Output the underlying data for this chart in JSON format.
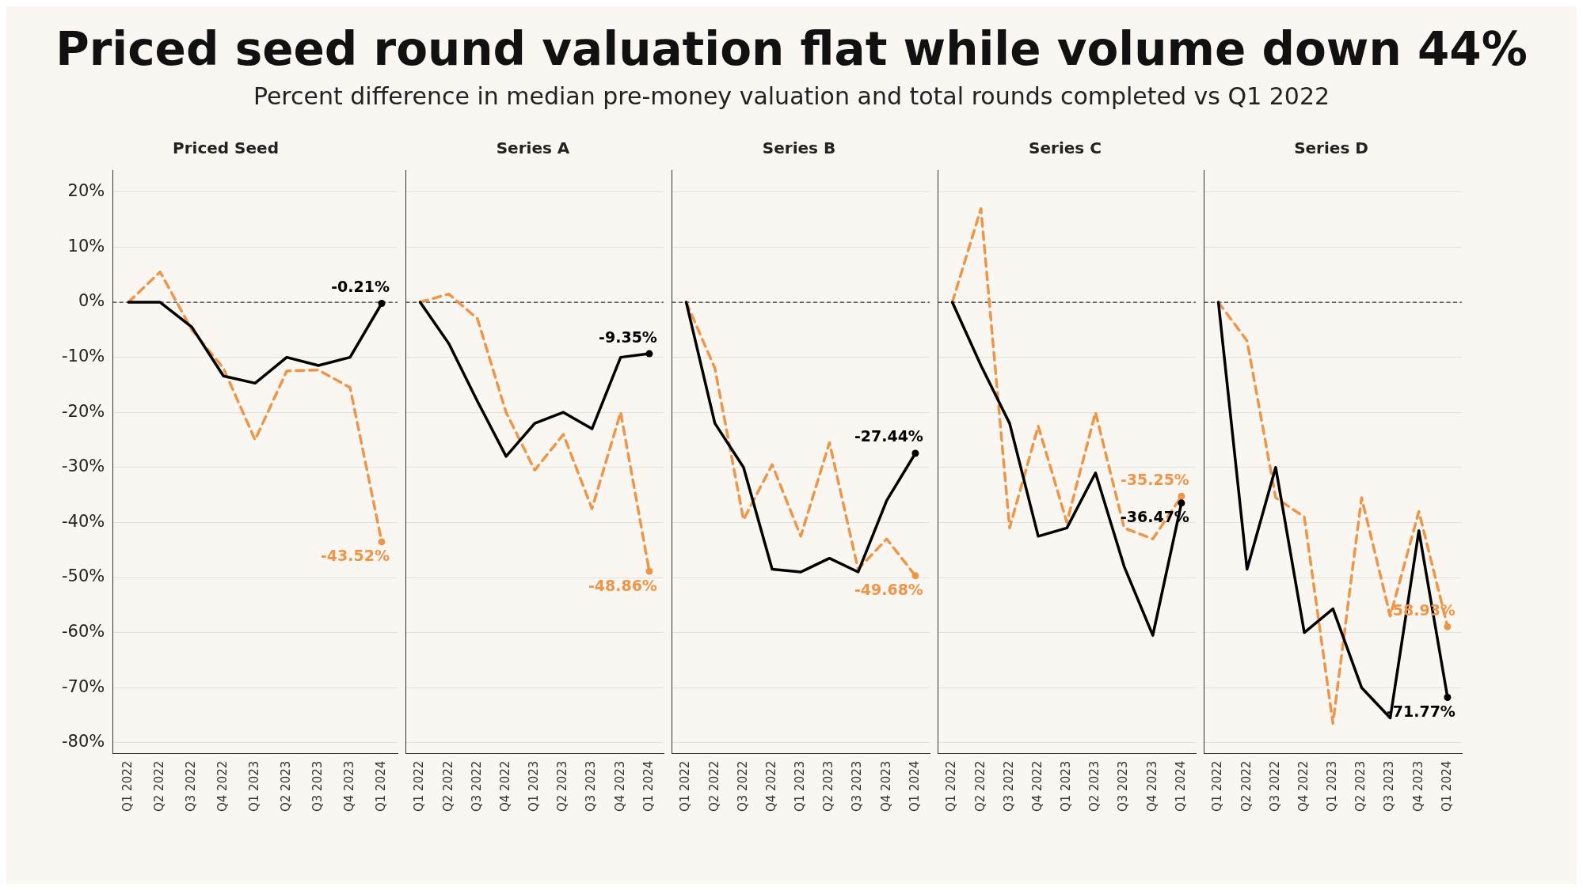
{
  "chart_data": [
    {
      "type": "other",
      "title": "Priced seed round valuation flat while volume down 44%",
      "subtitle": "Percent difference in median pre-money valuation and total rounds completed vs Q1 2022"
    },
    {
      "type": "line",
      "title": "Priced Seed",
      "categories": [
        "Q1 2022",
        "Q2 2022",
        "Q3 2022",
        "Q4 2022",
        "Q1 2023",
        "Q2 2023",
        "Q3 2023",
        "Q4 2023",
        "Q1 2024"
      ],
      "ylim": [
        -82,
        24
      ],
      "yticks": [
        {
          "value": -80,
          "label": "-80%"
        },
        {
          "value": -70,
          "label": "-70%"
        },
        {
          "value": -60,
          "label": "-60%"
        },
        {
          "value": -50,
          "label": "-50%"
        },
        {
          "value": -40,
          "label": "-40%"
        },
        {
          "value": -30,
          "label": "-30%"
        },
        {
          "value": -20,
          "label": "-20%"
        },
        {
          "value": -10,
          "label": "-10%"
        },
        {
          "value": 0,
          "label": "0%"
        },
        {
          "value": 10,
          "label": "10%"
        },
        {
          "value": 20,
          "label": "20%"
        }
      ],
      "grid": "y",
      "legend": false,
      "ref_lines": [
        {
          "axis": "y",
          "value": 0,
          "line_style": "dashed",
          "color": "#333333"
        }
      ],
      "series": [
        {
          "color": "#000000",
          "line_style": "solid",
          "values": [
            0,
            0,
            -4.5,
            -13.4,
            -14.7,
            -10,
            -11.5,
            -10,
            -0.21
          ],
          "value_labels": [
            null,
            null,
            null,
            null,
            null,
            null,
            null,
            null,
            "-0.21%"
          ]
        },
        {
          "color": "#ef9548",
          "line_style": "dashed",
          "values": [
            0,
            5.5,
            -5,
            -12,
            -25,
            -12.5,
            -12.3,
            -15.5,
            -43.52
          ],
          "value_labels": [
            null,
            null,
            null,
            null,
            null,
            null,
            null,
            null,
            "-43.52%"
          ]
        }
      ]
    },
    {
      "type": "line",
      "title": "Series A",
      "categories": [
        "Q1 2022",
        "Q2 2022",
        "Q3 2022",
        "Q4 2022",
        "Q1 2023",
        "Q2 2023",
        "Q3 2023",
        "Q4 2023",
        "Q1 2024"
      ],
      "ylim": [
        -82,
        24
      ],
      "yticks": [
        {
          "value": -80,
          "label": null
        },
        {
          "value": -70,
          "label": null
        },
        {
          "value": -60,
          "label": null
        },
        {
          "value": -50,
          "label": null
        },
        {
          "value": -40,
          "label": null
        },
        {
          "value": -30,
          "label": null
        },
        {
          "value": -20,
          "label": null
        },
        {
          "value": -10,
          "label": null
        },
        {
          "value": 0,
          "label": null
        },
        {
          "value": 10,
          "label": null
        },
        {
          "value": 20,
          "label": null
        }
      ],
      "tick_labels": "x",
      "grid": "y",
      "legend": false,
      "ref_lines": [
        {
          "axis": "y",
          "value": 0,
          "line_style": "dashed",
          "color": "#333333"
        }
      ],
      "series": [
        {
          "color": "#000000",
          "line_style": "solid",
          "values": [
            0,
            -7.5,
            -18,
            -28,
            -22,
            -20,
            -23,
            -10,
            -9.35
          ],
          "value_labels": [
            null,
            null,
            null,
            null,
            null,
            null,
            null,
            null,
            "-9.35%"
          ]
        },
        {
          "color": "#ef9548",
          "line_style": "dashed",
          "values": [
            0,
            1.5,
            -3,
            -20,
            -30.5,
            -24,
            -37.5,
            -20,
            -48.86
          ],
          "value_labels": [
            null,
            null,
            null,
            null,
            null,
            null,
            null,
            null,
            "-48.86%"
          ]
        }
      ]
    },
    {
      "type": "line",
      "title": "Series B",
      "categories": [
        "Q1 2022",
        "Q2 2022",
        "Q3 2022",
        "Q4 2022",
        "Q1 2023",
        "Q2 2023",
        "Q3 2023",
        "Q4 2023",
        "Q1 2024"
      ],
      "ylim": [
        -82,
        24
      ],
      "yticks": [
        {
          "value": -80,
          "label": null
        },
        {
          "value": -70,
          "label": null
        },
        {
          "value": -60,
          "label": null
        },
        {
          "value": -50,
          "label": null
        },
        {
          "value": -40,
          "label": null
        },
        {
          "value": -30,
          "label": null
        },
        {
          "value": -20,
          "label": null
        },
        {
          "value": -10,
          "label": null
        },
        {
          "value": 0,
          "label": null
        },
        {
          "value": 10,
          "label": null
        },
        {
          "value": 20,
          "label": null
        }
      ],
      "tick_labels": "x",
      "grid": "y",
      "legend": false,
      "ref_lines": [
        {
          "axis": "y",
          "value": 0,
          "line_style": "dashed",
          "color": "#333333"
        }
      ],
      "series": [
        {
          "color": "#000000",
          "line_style": "solid",
          "values": [
            0,
            -22,
            -30,
            -48.5,
            -49,
            -46.5,
            -49,
            -36,
            -27.44
          ],
          "value_labels": [
            null,
            null,
            null,
            null,
            null,
            null,
            null,
            null,
            "-27.44%"
          ]
        },
        {
          "color": "#ef9548",
          "line_style": "dashed",
          "values": [
            0,
            -12,
            -39.5,
            -29.5,
            -42.5,
            -25.5,
            -48.5,
            -43,
            -49.68
          ],
          "value_labels": [
            null,
            null,
            null,
            null,
            null,
            null,
            null,
            null,
            "-49.68%"
          ]
        }
      ]
    },
    {
      "type": "line",
      "title": "Series C",
      "categories": [
        "Q1 2022",
        "Q2 2022",
        "Q3 2022",
        "Q4 2022",
        "Q1 2023",
        "Q2 2023",
        "Q3 2023",
        "Q4 2023",
        "Q1 2024"
      ],
      "ylim": [
        -82,
        24
      ],
      "yticks": [
        {
          "value": -80,
          "label": null
        },
        {
          "value": -70,
          "label": null
        },
        {
          "value": -60,
          "label": null
        },
        {
          "value": -50,
          "label": null
        },
        {
          "value": -40,
          "label": null
        },
        {
          "value": -30,
          "label": null
        },
        {
          "value": -20,
          "label": null
        },
        {
          "value": -10,
          "label": null
        },
        {
          "value": 0,
          "label": null
        },
        {
          "value": 10,
          "label": null
        },
        {
          "value": 20,
          "label": null
        }
      ],
      "tick_labels": "x",
      "grid": "y",
      "legend": false,
      "ref_lines": [
        {
          "axis": "y",
          "value": 0,
          "line_style": "dashed",
          "color": "#333333"
        }
      ],
      "series": [
        {
          "color": "#000000",
          "line_style": "solid",
          "values": [
            0,
            -11.5,
            -22,
            -42.5,
            -41,
            -31,
            -48,
            -60.5,
            -36.47
          ],
          "value_labels": [
            null,
            null,
            null,
            null,
            null,
            null,
            null,
            null,
            "-36.47%"
          ]
        },
        {
          "color": "#ef9548",
          "line_style": "dashed",
          "values": [
            0,
            17,
            -41,
            -22.5,
            -40,
            -20,
            -41,
            -43,
            -35.25
          ],
          "value_labels": [
            null,
            null,
            null,
            null,
            null,
            null,
            null,
            null,
            "-35.25%"
          ]
        }
      ]
    },
    {
      "type": "line",
      "title": "Series D",
      "categories": [
        "Q1 2022",
        "Q2 2022",
        "Q3 2022",
        "Q4 2022",
        "Q1 2023",
        "Q2 2023",
        "Q3 2023",
        "Q4 2023",
        "Q1 2024"
      ],
      "ylim": [
        -82,
        24
      ],
      "yticks": [
        {
          "value": -80,
          "label": null
        },
        {
          "value": -70,
          "label": null
        },
        {
          "value": -60,
          "label": null
        },
        {
          "value": -50,
          "label": null
        },
        {
          "value": -40,
          "label": null
        },
        {
          "value": -30,
          "label": null
        },
        {
          "value": -20,
          "label": null
        },
        {
          "value": -10,
          "label": null
        },
        {
          "value": 0,
          "label": null
        },
        {
          "value": 10,
          "label": null
        },
        {
          "value": 20,
          "label": null
        }
      ],
      "tick_labels": "x",
      "grid": "y",
      "legend": false,
      "ref_lines": [
        {
          "axis": "y",
          "value": 0,
          "line_style": "dashed",
          "color": "#333333"
        }
      ],
      "series": [
        {
          "color": "#000000",
          "line_style": "solid",
          "values": [
            0,
            -48.5,
            -30,
            -60,
            -55.7,
            -70,
            -75.5,
            -41.5,
            -71.77
          ],
          "value_labels": [
            null,
            null,
            null,
            null,
            null,
            null,
            null,
            null,
            "-71.77%"
          ]
        },
        {
          "color": "#ef9548",
          "line_style": "dashed",
          "values": [
            0,
            -7,
            -35.5,
            -39,
            -76.5,
            -35.5,
            -57,
            -38,
            -58.93
          ],
          "value_labels": [
            null,
            null,
            null,
            null,
            null,
            null,
            null,
            null,
            "-58.93%"
          ]
        }
      ]
    }
  ]
}
